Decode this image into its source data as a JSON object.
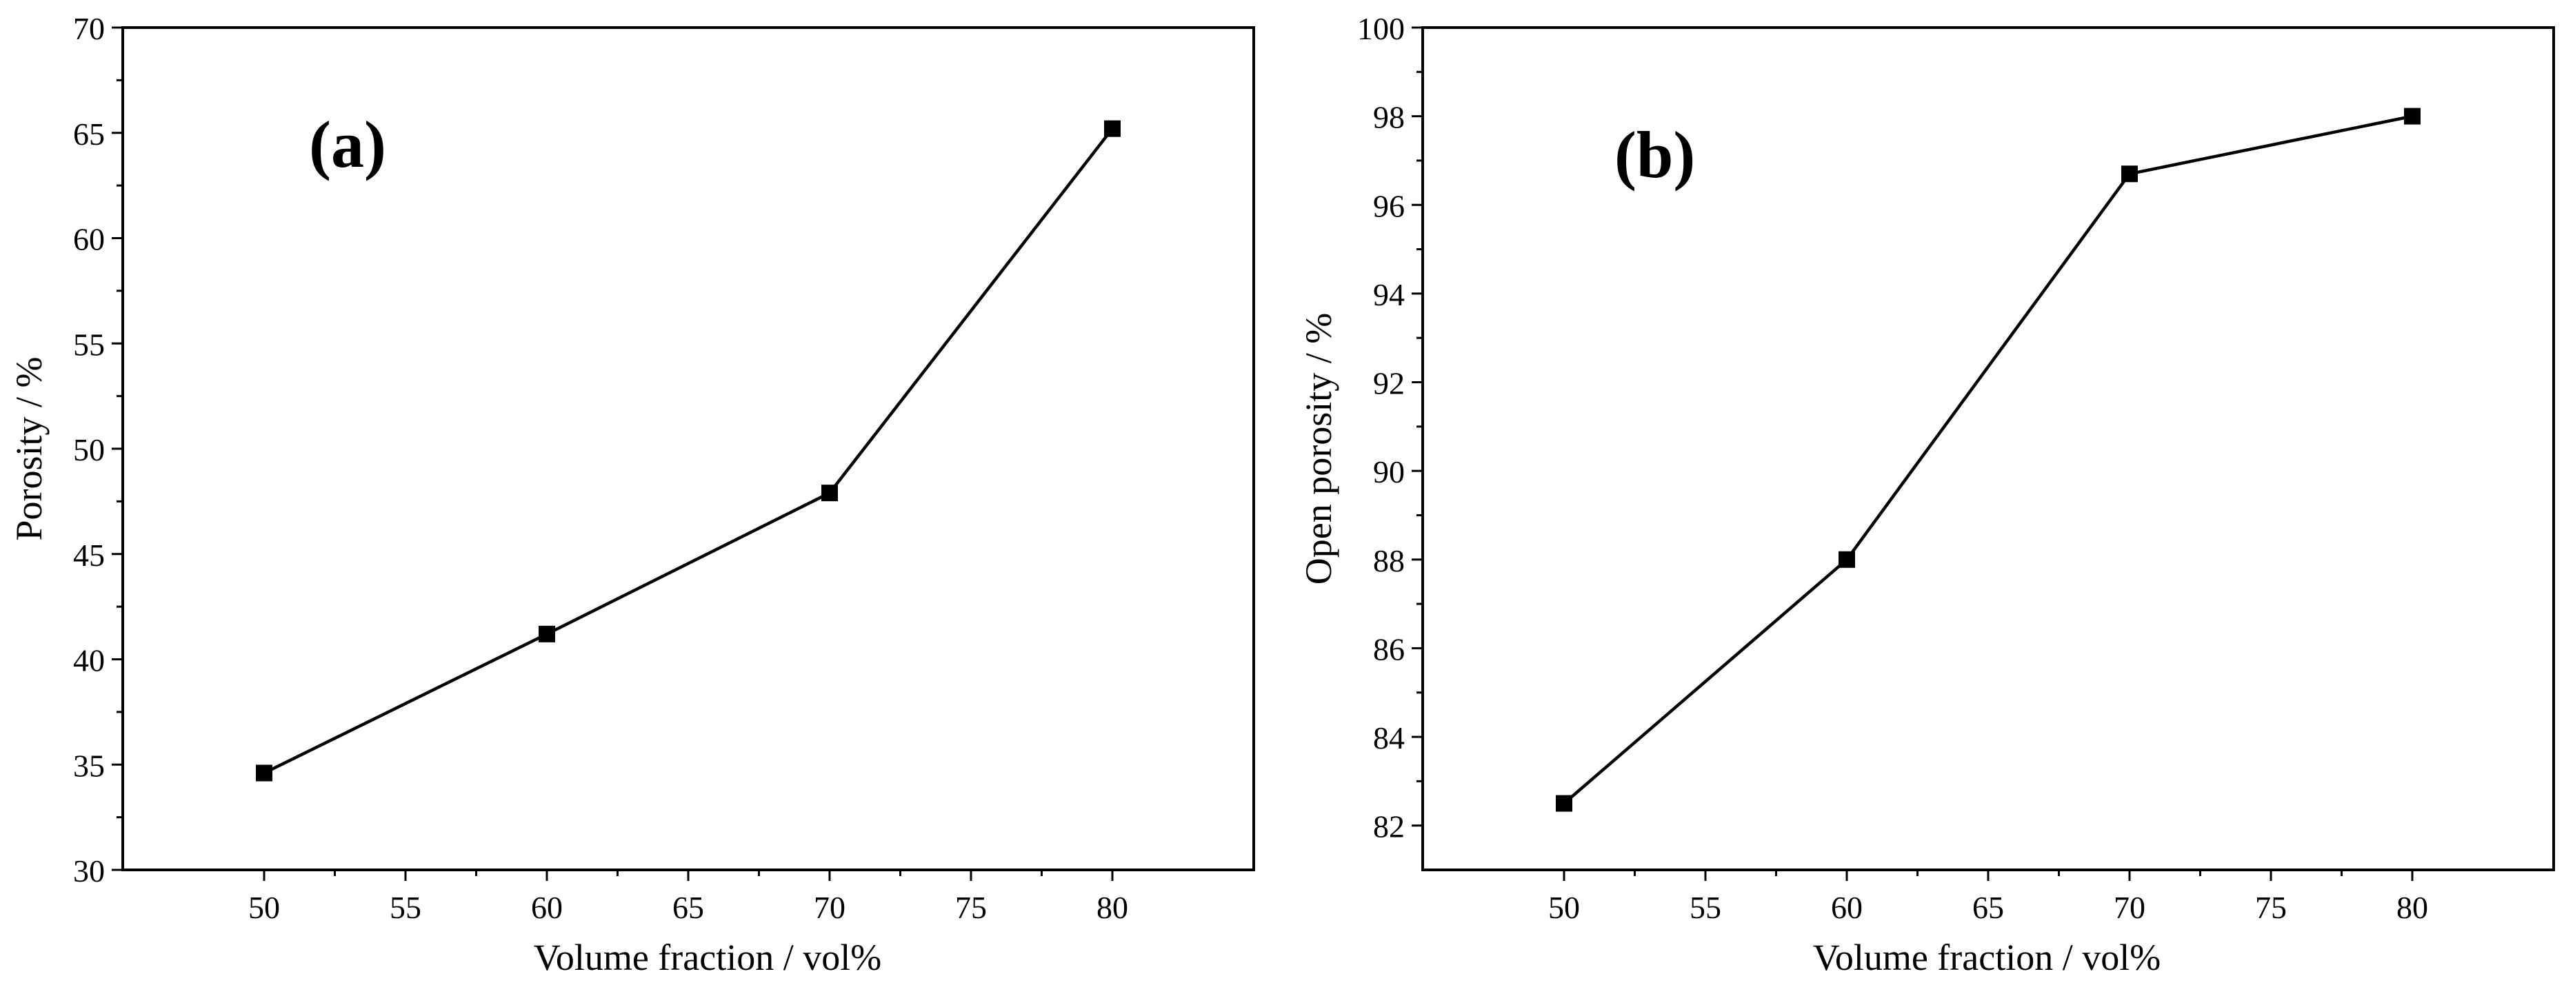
{
  "chart_data": [
    {
      "type": "line",
      "panel_label": "(a)",
      "title": "",
      "xlabel": "Volume fraction / vol%",
      "ylabel": "Porosity / %",
      "xlim": [
        45,
        85
      ],
      "ylim": [
        30,
        70
      ],
      "xticks": [
        50,
        55,
        60,
        65,
        70,
        75,
        80
      ],
      "yticks": [
        30,
        35,
        40,
        45,
        50,
        55,
        60,
        65,
        70
      ],
      "xtick_labels": [
        "50",
        "55",
        "60",
        "65",
        "70",
        "75",
        "80"
      ],
      "ytick_labels": [
        "30",
        "35",
        "40",
        "45",
        "50",
        "55",
        "60",
        "65",
        "70"
      ],
      "grid": false,
      "marker": "square",
      "series": [
        {
          "name": "Porosity",
          "x": [
            50,
            60,
            70,
            80
          ],
          "y": [
            34.6,
            41.2,
            47.9,
            65.2
          ]
        }
      ]
    },
    {
      "type": "line",
      "panel_label": "(b)",
      "title": "",
      "xlabel": "Volume fraction / vol%",
      "ylabel": "Open porosity / %",
      "xlim": [
        45,
        85
      ],
      "ylim": [
        81,
        100
      ],
      "xticks": [
        50,
        55,
        60,
        65,
        70,
        75,
        80
      ],
      "yticks": [
        82,
        84,
        86,
        88,
        90,
        92,
        94,
        96,
        98,
        100
      ],
      "xtick_labels": [
        "50",
        "55",
        "60",
        "65",
        "70",
        "75",
        "80"
      ],
      "ytick_labels": [
        "82",
        "84",
        "86",
        "88",
        "90",
        "92",
        "94",
        "96",
        "98",
        "100"
      ],
      "grid": false,
      "marker": "square",
      "series": [
        {
          "name": "Open porosity",
          "x": [
            50,
            60,
            70,
            80
          ],
          "y": [
            82.5,
            88.0,
            96.7,
            98.0
          ]
        }
      ]
    }
  ]
}
